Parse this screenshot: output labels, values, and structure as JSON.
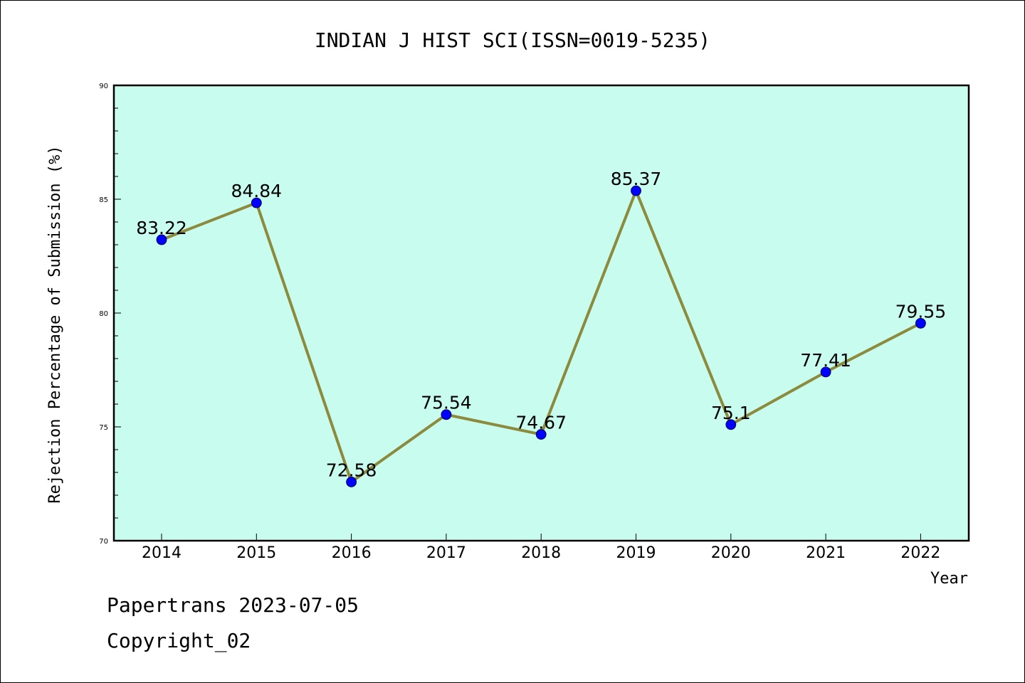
{
  "chart_data": {
    "type": "line",
    "title": "INDIAN J HIST SCI(ISSN=0019-5235)",
    "xlabel": "Year",
    "ylabel": "Rejection Percentage of Submission (%)",
    "categories": [
      "2014",
      "2015",
      "2016",
      "2017",
      "2018",
      "2019",
      "2020",
      "2021",
      "2022"
    ],
    "series": [
      {
        "values": [
          83.22,
          84.84,
          72.58,
          75.54,
          74.67,
          85.37,
          75.1,
          77.41,
          79.55
        ],
        "data_labels": [
          "83.22",
          "84.84",
          "72.58",
          "75.54",
          "74.67",
          "85.37",
          "75.1",
          "77.41",
          "79.55"
        ]
      }
    ],
    "ylim": [
      70,
      90
    ],
    "yticks": [
      70,
      75,
      80,
      85,
      90
    ],
    "grid": false,
    "colors": {
      "plot_background": "#c8fcee",
      "line": "#8c8a3c",
      "marker": "#0000ff"
    }
  },
  "footer": {
    "line1": "Papertrans 2023-07-05",
    "line2": "Copyright_02"
  }
}
